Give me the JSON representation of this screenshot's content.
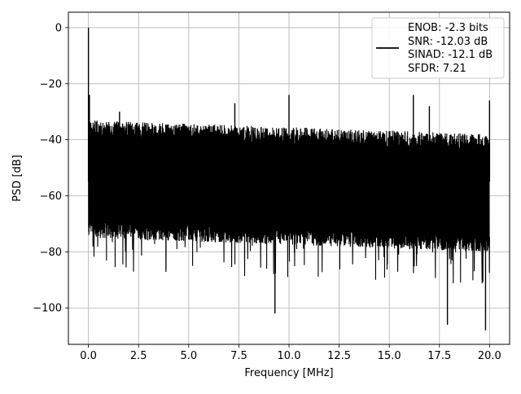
{
  "chart_data": {
    "type": "line",
    "title": "",
    "xlabel": "Frequency [MHz]",
    "ylabel": "PSD [dB]",
    "xlim": [
      -1.0,
      21.0
    ],
    "ylim": [
      -113.0,
      5.5
    ],
    "xticks": [
      0.0,
      2.5,
      5.0,
      7.5,
      10.0,
      12.5,
      15.0,
      17.5,
      20.0
    ],
    "xtick_labels": [
      "0.0",
      "2.5",
      "5.0",
      "7.5",
      "10.0",
      "12.5",
      "15.0",
      "17.5",
      "20.0"
    ],
    "yticks": [
      0,
      -20,
      -40,
      -60,
      -80,
      -100
    ],
    "ytick_labels": [
      "0",
      "−20",
      "−40",
      "−60",
      "−80",
      "−100"
    ],
    "grid": true,
    "legend_position": "top-right",
    "series": [
      {
        "name": "",
        "color": "#000000",
        "description_points": {
          "x": [
            0.0,
            0.02,
            0.05,
            0.1,
            0.2,
            0.5,
            1.0,
            1.55,
            2.0,
            3.0,
            4.0,
            5.0,
            6.0,
            7.0,
            7.3,
            7.5,
            8.0,
            9.3,
            9.5,
            10.0,
            11.0,
            12.0,
            13.0,
            14.0,
            15.0,
            16.2,
            16.5,
            17.0,
            17.5,
            17.9,
            18.0,
            19.0,
            19.8,
            20.0
          ],
          "y": [
            0,
            -73,
            -24,
            -70,
            -45,
            -60,
            -50,
            -30,
            -55,
            -48,
            -62,
            -45,
            -58,
            -50,
            -27,
            -60,
            -45,
            -102,
            -50,
            -24,
            -55,
            -50,
            -60,
            -48,
            -55,
            -24,
            -55,
            -28,
            -50,
            -106,
            -45,
            -55,
            -108,
            -26
          ]
        },
        "noise_floor_upper_db": [
          -33,
          -38
        ],
        "noise_floor_lower_db": [
          -75,
          -80
        ]
      }
    ],
    "legend_lines": [
      "ENOB: -2.3 bits",
      "SNR: -12.03 dB",
      "SINAD: -12.1 dB",
      "SFDR: 7.21"
    ]
  }
}
